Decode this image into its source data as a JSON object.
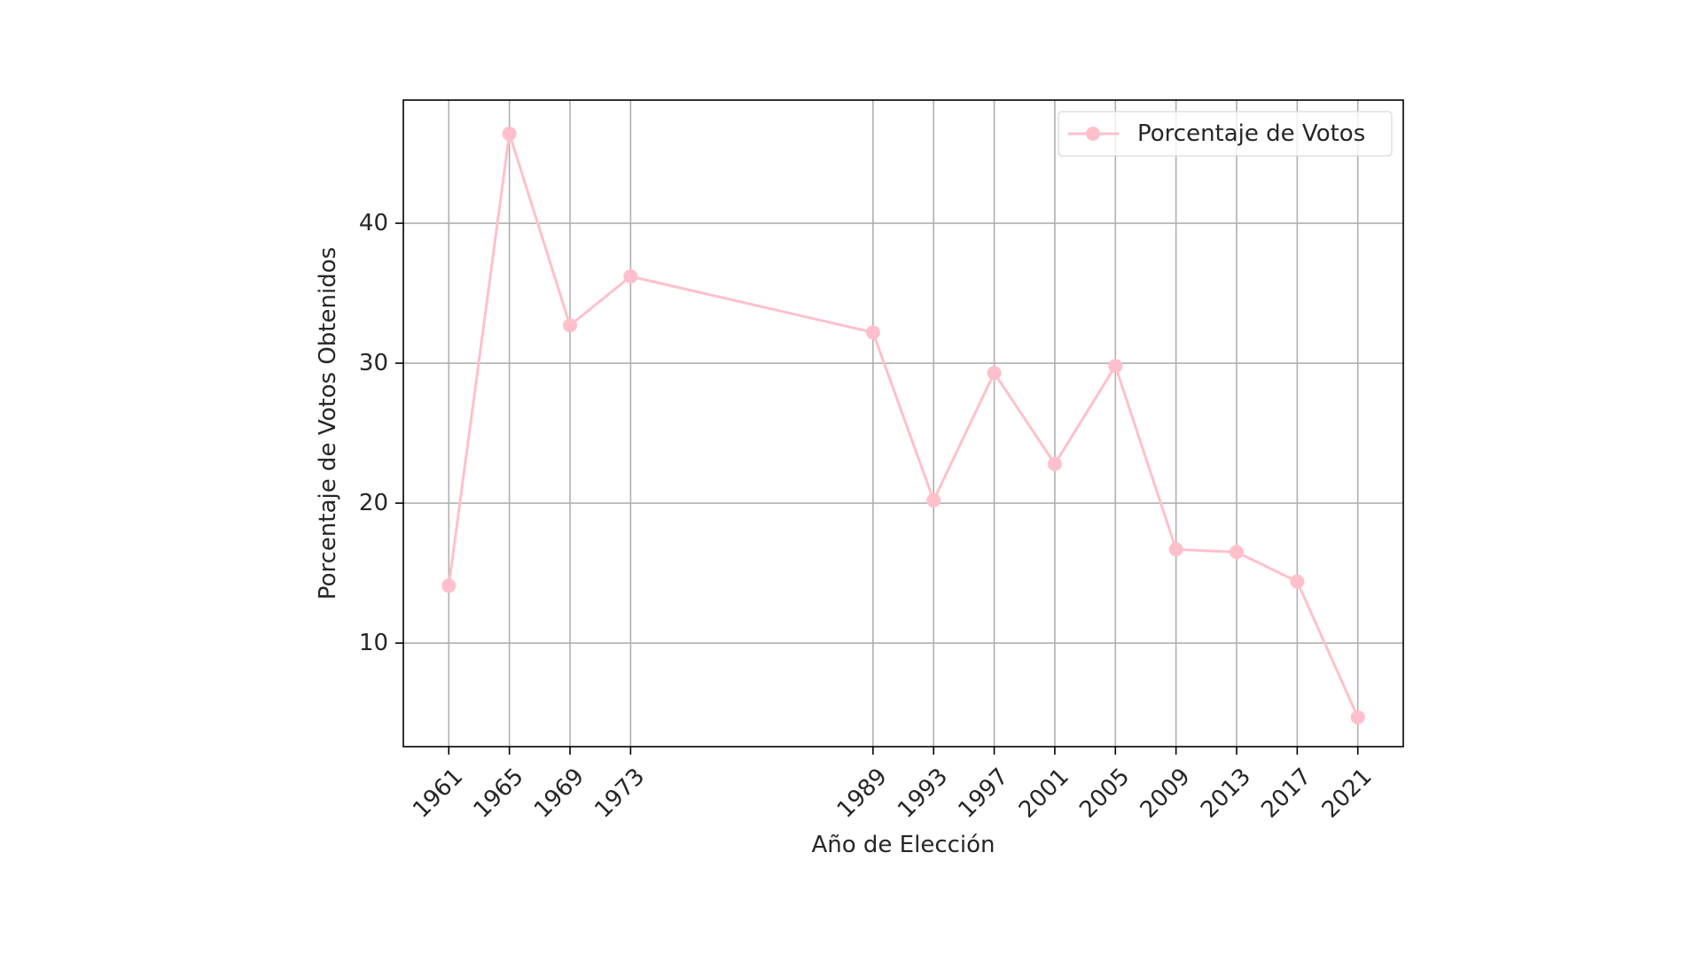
{
  "chart_data": {
    "type": "line",
    "xlabel": "Año de Elección",
    "ylabel": "Porcentaje de Votos Obtenidos",
    "x": [
      1961,
      1965,
      1969,
      1973,
      1989,
      1993,
      1997,
      2001,
      2005,
      2009,
      2013,
      2017,
      2021
    ],
    "series": [
      {
        "name": "Porcentaje de Votos",
        "color": "#ffc0cb",
        "marker": "circle",
        "values": [
          14.1,
          46.4,
          32.7,
          36.2,
          32.2,
          20.2,
          29.3,
          22.8,
          29.8,
          16.7,
          16.5,
          14.4,
          4.7
        ]
      }
    ],
    "xticks": [
      1961,
      1965,
      1969,
      1973,
      1989,
      1993,
      1997,
      2001,
      2005,
      2009,
      2013,
      2017,
      2021
    ],
    "yticks": [
      10,
      20,
      30,
      40
    ],
    "xlim": [
      1958.0,
      2024.0
    ],
    "ylim": [
      2.6,
      48.8
    ],
    "grid": true,
    "legend_position": "top-right",
    "xtick_rotation": 45
  }
}
